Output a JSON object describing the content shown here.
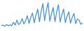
{
  "chart_data": {
    "type": "line",
    "color": "#4a94d8",
    "tick_labels": false,
    "categories": [
      null,
      null,
      null,
      null,
      null,
      null,
      null,
      null,
      null,
      null,
      null,
      null,
      null,
      null,
      null,
      null,
      null,
      null,
      null,
      null,
      null,
      null,
      null,
      null,
      null,
      null,
      null,
      null,
      null,
      null,
      null,
      null,
      null,
      null,
      null,
      null,
      null,
      null,
      null,
      null,
      null,
      null,
      null,
      null,
      null,
      null,
      null,
      null
    ],
    "values": [
      12,
      14,
      10,
      16,
      11,
      15,
      12,
      24,
      14,
      32,
      16,
      22,
      38,
      18,
      30,
      48,
      20,
      42,
      58,
      22,
      50,
      72,
      26,
      62,
      92,
      30,
      66,
      96,
      28,
      56,
      78,
      26,
      62,
      88,
      25,
      52,
      72,
      23,
      46,
      62,
      21,
      42,
      56,
      19,
      36,
      31,
      17,
      22
    ],
    "ylim": [
      0,
      100
    ]
  }
}
